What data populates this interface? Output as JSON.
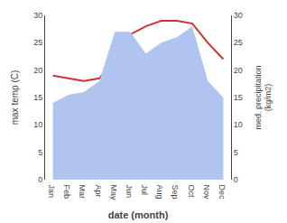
{
  "chart_data": {
    "type": "line",
    "categories": [
      "Jan",
      "Feb",
      "Mar",
      "Apr",
      "May",
      "Jun",
      "Jul",
      "Aug",
      "Sep",
      "Oct",
      "Nov",
      "Dec"
    ],
    "series": [
      {
        "type": "area",
        "axis": "y2",
        "color": "#b0c4f0",
        "values": [
          14.0,
          15.5,
          16.0,
          18.0,
          27.0,
          27.0,
          23.0,
          25.0,
          26.0,
          28.0,
          18.0,
          15.0
        ]
      },
      {
        "type": "line",
        "color": "#cc3333",
        "values": [
          19.0,
          18.5,
          18.0,
          18.5,
          22.0,
          26.5,
          28.0,
          29.0,
          29.0,
          28.5,
          25.0,
          22.0
        ]
      }
    ],
    "xlabel": "date (month)",
    "ylabel": "max temp (C)",
    "y2label": "med. precipitation\n(kg/m2)",
    "ylim": [
      0,
      30
    ],
    "yticks": [
      0,
      5,
      10,
      15,
      20,
      25,
      30
    ],
    "y2lim": [
      0,
      30
    ],
    "y2ticks": [
      0,
      5,
      10,
      15,
      20,
      25,
      30
    ],
    "grid": false
  }
}
